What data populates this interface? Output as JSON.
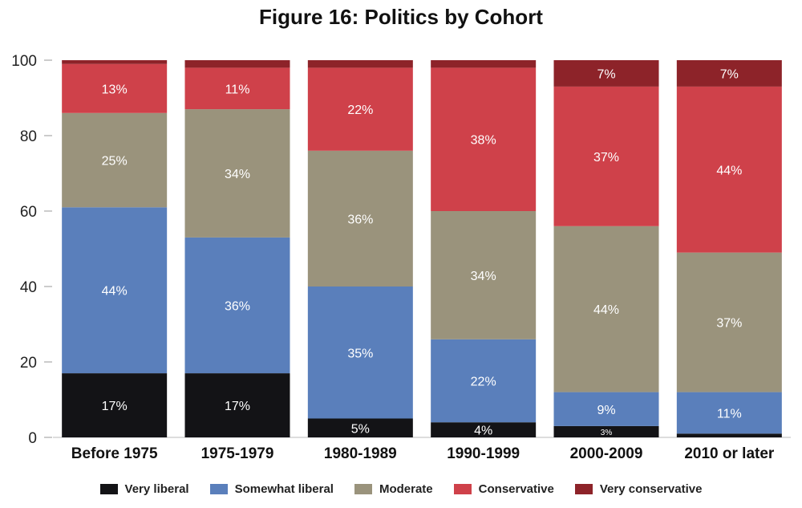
{
  "chart_data": {
    "type": "bar",
    "stacked": true,
    "title": "Figure 16: Politics by Cohort",
    "categories": [
      "Before 1975",
      "1975-1979",
      "1980-1989",
      "1990-1999",
      "2000-2009",
      "2010 or later"
    ],
    "ylim": [
      0,
      100
    ],
    "yticks": [
      0,
      20,
      40,
      60,
      80,
      100
    ],
    "series": [
      {
        "name": "Very liberal",
        "color": "#131316",
        "label_color": "#ffffff",
        "values": [
          17,
          17,
          5,
          4,
          3,
          1
        ],
        "labels": [
          "17%",
          "17%",
          "5%",
          "4%",
          "3%",
          ""
        ]
      },
      {
        "name": "Somewhat liberal",
        "color": "#5a7fbb",
        "label_color": "#ffffff",
        "values": [
          44,
          36,
          35,
          22,
          9,
          11
        ],
        "labels": [
          "44%",
          "36%",
          "35%",
          "22%",
          "9%",
          "11%"
        ]
      },
      {
        "name": "Moderate",
        "color": "#9a937c",
        "label_color": "#ffffff",
        "values": [
          25,
          34,
          36,
          34,
          44,
          37
        ],
        "labels": [
          "25%",
          "34%",
          "36%",
          "34%",
          "44%",
          "37%"
        ]
      },
      {
        "name": "Conservative",
        "color": "#cf414a",
        "label_color": "#ffffff",
        "values": [
          13,
          11,
          22,
          38,
          37,
          44
        ],
        "labels": [
          "13%",
          "11%",
          "22%",
          "38%",
          "37%",
          "44%"
        ]
      },
      {
        "name": "Very conservative",
        "color": "#8d2329",
        "label_color": "#ffffff",
        "values": [
          2,
          3,
          2,
          2,
          7,
          7
        ],
        "labels": [
          "",
          "",
          "",
          "",
          "7%",
          "7%"
        ]
      }
    ],
    "grid": false,
    "legend_position": "bottom"
  }
}
